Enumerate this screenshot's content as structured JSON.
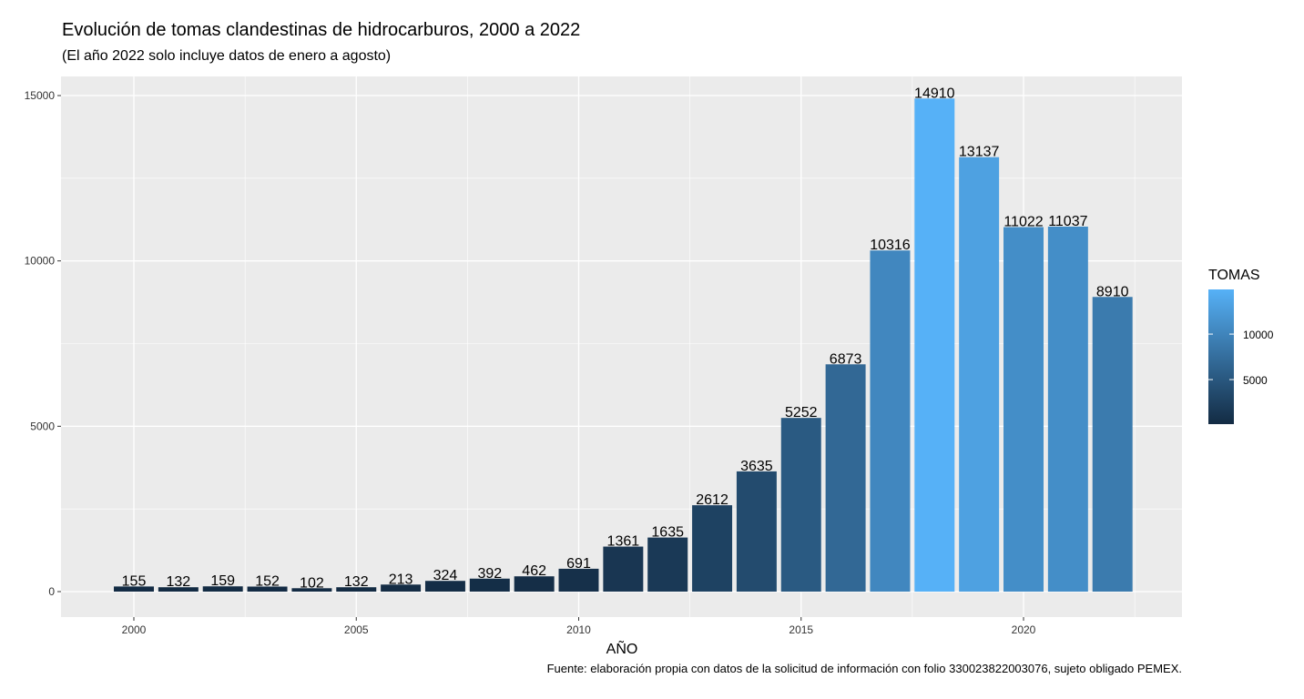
{
  "chart_data": {
    "type": "bar",
    "title": "Evolución de tomas clandestinas de hidrocarburos, 2000 a 2022",
    "subtitle": "(El año 2022 solo incluye datos de enero a agosto)",
    "xlabel": "AÑO",
    "ylabel": "",
    "caption": "Fuente: elaboración propia con datos de la solicitud de información con folio 330023822003076, sujeto obligado PEMEX.",
    "categories": [
      2000,
      2001,
      2002,
      2003,
      2004,
      2005,
      2006,
      2007,
      2008,
      2009,
      2010,
      2011,
      2012,
      2013,
      2014,
      2015,
      2016,
      2017,
      2018,
      2019,
      2020,
      2021,
      2022
    ],
    "values": [
      155,
      132,
      159,
      152,
      102,
      132,
      213,
      324,
      392,
      462,
      691,
      1361,
      1635,
      2612,
      3635,
      5252,
      6873,
      10316,
      14910,
      13137,
      11022,
      11037,
      8910
    ],
    "xticks": [
      2000,
      2005,
      2010,
      2015,
      2020
    ],
    "yticks": [
      0,
      5000,
      10000,
      15000
    ],
    "ylim": [
      -1500,
      15500
    ],
    "xlim": [
      1998.6,
      2023.8
    ],
    "grid": true,
    "legend": {
      "title": "TOMAS",
      "position": "right",
      "ticks": [
        5000,
        10000
      ],
      "color_low": "#132B43",
      "color_high": "#56B1F7"
    },
    "panel_background": "#EBEBEB"
  }
}
